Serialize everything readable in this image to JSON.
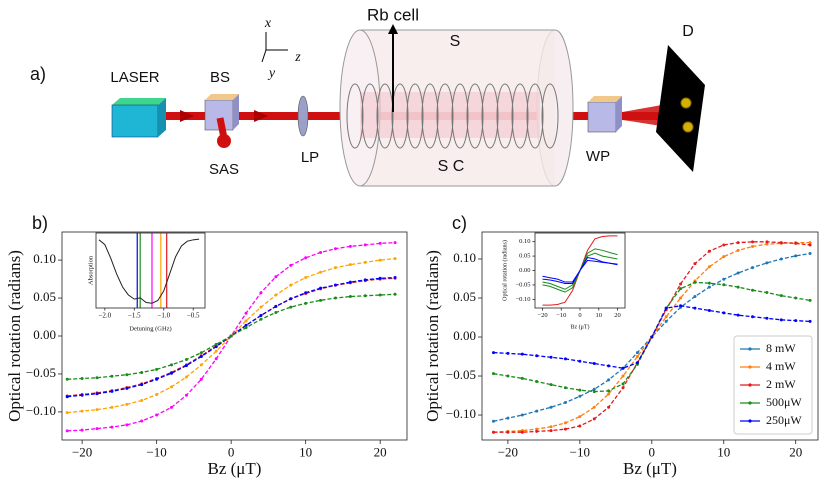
{
  "diagram": {
    "panel_label": "a)",
    "laser": "LASER",
    "bs": "BS",
    "sas": "SAS",
    "lp": "LP",
    "rb_cell": "Rb cell",
    "s": "S",
    "sc": "S C",
    "wp": "WP",
    "d": "D",
    "axis_x": "x",
    "axis_y": "y",
    "axis_z": "z"
  },
  "chart_data": [
    {
      "type": "line",
      "title": "b)",
      "xlabel": "Bz (μT)",
      "ylabel": "Optical rotation (radians)",
      "x": [
        -22,
        -20,
        -18,
        -16,
        -14,
        -12,
        -10,
        -8,
        -6,
        -4,
        -2,
        0,
        2,
        4,
        6,
        8,
        10,
        12,
        14,
        16,
        18,
        20,
        22
      ],
      "xlim": [
        -22.7,
        23.6
      ],
      "ylim": [
        -0.137,
        0.137
      ],
      "xticks": [
        {
          "value": -20,
          "label": "−20"
        },
        {
          "value": -10,
          "label": "−10"
        },
        0,
        10,
        20
      ],
      "yticks": [
        {
          "value": -0.1,
          "label": "−0.10"
        },
        {
          "value": -0.05,
          "label": "−0.05"
        },
        {
          "value": 0,
          "label": "0.00"
        },
        {
          "value": 0.05,
          "label": "0.05"
        },
        {
          "value": 0.1,
          "label": "0.10"
        }
      ],
      "markers": true,
      "dashed": true,
      "series": [
        {
          "color": "#ff00ff",
          "values": [
            -0.125,
            -0.124,
            -0.122,
            -0.12,
            -0.117,
            -0.112,
            -0.104,
            -0.094,
            -0.078,
            -0.057,
            -0.03,
            0,
            0.03,
            0.057,
            0.078,
            0.093,
            0.103,
            0.11,
            0.115,
            0.118,
            0.12,
            0.122,
            0.123
          ]
        },
        {
          "color": "#ffa500",
          "values": [
            -0.101,
            -0.099,
            -0.097,
            -0.094,
            -0.09,
            -0.085,
            -0.077,
            -0.067,
            -0.054,
            -0.038,
            -0.02,
            0,
            0.02,
            0.038,
            0.054,
            0.067,
            0.077,
            0.084,
            0.09,
            0.094,
            0.097,
            0.1,
            0.102
          ]
        },
        {
          "color": "#e41a1c",
          "values": [
            -0.079,
            -0.077,
            -0.075,
            -0.072,
            -0.068,
            -0.063,
            -0.056,
            -0.048,
            -0.038,
            -0.026,
            -0.013,
            0,
            0.014,
            0.027,
            0.039,
            0.049,
            0.056,
            0.062,
            0.067,
            0.07,
            0.073,
            0.075,
            0.076
          ]
        },
        {
          "color": "#0000ff",
          "values": [
            -0.08,
            -0.078,
            -0.076,
            -0.073,
            -0.069,
            -0.064,
            -0.057,
            -0.049,
            -0.039,
            -0.027,
            -0.014,
            0,
            0.014,
            0.027,
            0.039,
            0.049,
            0.057,
            0.063,
            0.067,
            0.071,
            0.074,
            0.076,
            0.077
          ]
        },
        {
          "color": "#1a8c1a",
          "values": [
            -0.057,
            -0.056,
            -0.055,
            -0.053,
            -0.051,
            -0.048,
            -0.044,
            -0.038,
            -0.031,
            -0.022,
            -0.011,
            0,
            0.011,
            0.022,
            0.031,
            0.038,
            0.043,
            0.047,
            0.05,
            0.052,
            0.053,
            0.054,
            0.055
          ]
        }
      ],
      "inset": {
        "type": "line",
        "xlabel": "Detuning (GHz)",
        "ylabel": "Absorption",
        "x": [
          -2.1,
          -2.0,
          -1.9,
          -1.8,
          -1.7,
          -1.6,
          -1.5,
          -1.4,
          -1.3,
          -1.2,
          -1.1,
          -1.0,
          -0.9,
          -0.8,
          -0.7,
          -0.6,
          -0.5,
          -0.4
        ],
        "xlim": [
          -2.15,
          -0.3
        ],
        "ylim": [
          -0.05,
          1.05
        ],
        "xticks": [
          {
            "value": -2.0,
            "label": "−2.0"
          },
          {
            "value": -1.5,
            "label": "−1.5"
          },
          {
            "value": -1.0,
            "label": "−1.0"
          },
          {
            "value": -0.5,
            "label": "−0.5"
          }
        ],
        "markers": false,
        "series": [
          {
            "color": "#222222",
            "values": [
              0.95,
              0.88,
              0.68,
              0.45,
              0.26,
              0.14,
              0.08,
              0.1,
              0.03,
              0.02,
              0.06,
              0.2,
              0.45,
              0.7,
              0.86,
              0.93,
              0.95,
              0.96
            ]
          }
        ],
        "vlines": [
          -1.45,
          -1.4,
          -1.2,
          -1.05,
          -0.95
        ],
        "vline_colors": [
          "#0000ff",
          "#1a8c1a",
          "#ff00ff",
          "#ffa500",
          "#e41a1c"
        ]
      }
    },
    {
      "type": "line",
      "title": "c)",
      "xlabel": "Bz (μT)",
      "ylabel": "Optical rotation (radians)",
      "x": [
        -22,
        -20,
        -18,
        -16,
        -14,
        -12,
        -10,
        -8,
        -6,
        -4,
        -2,
        0,
        2,
        4,
        6,
        8,
        10,
        12,
        14,
        16,
        18,
        20,
        22
      ],
      "xlim": [
        -23.6,
        23.1
      ],
      "ylim": [
        -0.132,
        0.1346
      ],
      "xticks": [
        {
          "value": -20,
          "label": "−20"
        },
        {
          "value": -10,
          "label": "−10"
        },
        0,
        10,
        20
      ],
      "yticks": [
        {
          "value": -0.1,
          "label": "−0.10"
        },
        {
          "value": -0.05,
          "label": "−0.05"
        },
        {
          "value": 0,
          "label": "0.00"
        },
        {
          "value": 0.05,
          "label": "0.05"
        },
        {
          "value": 0.1,
          "label": "0.10"
        }
      ],
      "markers": true,
      "dashed": true,
      "legend": "lower right",
      "series": [
        {
          "name": "8 mW",
          "color": "#1f77b4",
          "values": [
            -0.108,
            -0.104,
            -0.1,
            -0.095,
            -0.09,
            -0.084,
            -0.076,
            -0.067,
            -0.055,
            -0.04,
            -0.02,
            0,
            0.02,
            0.038,
            0.052,
            0.064,
            0.074,
            0.082,
            0.089,
            0.095,
            0.1,
            0.104,
            0.107
          ]
        },
        {
          "name": "4 mW",
          "color": "#ff7f0e",
          "values": [
            -0.122,
            -0.121,
            -0.12,
            -0.118,
            -0.115,
            -0.11,
            -0.102,
            -0.09,
            -0.073,
            -0.05,
            -0.025,
            0,
            0.026,
            0.05,
            0.072,
            0.09,
            0.103,
            0.111,
            0.116,
            0.119,
            0.12,
            0.121,
            0.121
          ]
        },
        {
          "name": "2 mW",
          "color": "#e41a1c",
          "values": [
            -0.122,
            -0.122,
            -0.122,
            -0.121,
            -0.12,
            -0.118,
            -0.114,
            -0.105,
            -0.09,
            -0.065,
            -0.033,
            0,
            0.035,
            0.068,
            0.094,
            0.11,
            0.118,
            0.121,
            0.122,
            0.122,
            0.121,
            0.12,
            0.118
          ]
        },
        {
          "name": "500μW",
          "color": "#1a8c1a",
          "values": [
            -0.047,
            -0.05,
            -0.053,
            -0.057,
            -0.061,
            -0.065,
            -0.068,
            -0.07,
            -0.069,
            -0.06,
            -0.035,
            0,
            0.037,
            0.062,
            0.07,
            0.069,
            0.067,
            0.064,
            0.06,
            0.057,
            0.053,
            0.05,
            0.047
          ]
        },
        {
          "name": "250μW",
          "color": "#0000ff",
          "values": [
            -0.02,
            -0.021,
            -0.022,
            -0.024,
            -0.026,
            -0.028,
            -0.031,
            -0.034,
            -0.037,
            -0.04,
            -0.033,
            0,
            0.037,
            0.04,
            0.037,
            0.034,
            0.031,
            0.028,
            0.026,
            0.024,
            0.022,
            0.021,
            0.02
          ]
        }
      ],
      "inset": {
        "type": "line",
        "xlabel": "Bz (μT)",
        "ylabel": "Optical rotation (radians)",
        "x": [
          -20,
          -16,
          -12,
          -8,
          -4,
          0,
          4,
          8,
          12,
          16,
          20
        ],
        "xlim": [
          -24,
          24
        ],
        "ylim": [
          -0.13,
          0.13
        ],
        "xticks": [
          {
            "value": -20,
            "label": "−20"
          },
          {
            "value": -10,
            "label": "−10"
          },
          0,
          10,
          20
        ],
        "yticks": [
          {
            "value": -0.1,
            "label": "−0.10"
          },
          {
            "value": -0.05,
            "label": "−0.05"
          },
          {
            "value": 0,
            "label": "0.00"
          },
          {
            "value": 0.05,
            "label": "0.05"
          },
          {
            "value": 0.1,
            "label": "0.10"
          }
        ],
        "markers": false,
        "series": [
          {
            "color": "#e41a1c",
            "values": [
              -0.12,
              -0.12,
              -0.118,
              -0.11,
              -0.07,
              0,
              0.07,
              0.11,
              0.118,
              0.12,
              0.12
            ]
          },
          {
            "color": "#1a8c1a",
            "values": [
              -0.04,
              -0.045,
              -0.055,
              -0.065,
              -0.05,
              0,
              0.06,
              0.075,
              0.07,
              0.062,
              0.055
            ]
          },
          {
            "color": "#1a8c1a",
            "values": [
              -0.05,
              -0.055,
              -0.065,
              -0.075,
              -0.06,
              0,
              0.05,
              0.06,
              0.05,
              0.045,
              0.04
            ]
          },
          {
            "color": "#0000ff",
            "values": [
              -0.02,
              -0.025,
              -0.03,
              -0.04,
              -0.04,
              0,
              0.045,
              0.04,
              0.03,
              0.025,
              0.02
            ]
          },
          {
            "color": "#0000ff",
            "values": [
              -0.03,
              -0.033,
              -0.038,
              -0.045,
              -0.045,
              0,
              0.035,
              0.032,
              0.028,
              0.025,
              0.022
            ]
          }
        ]
      }
    }
  ]
}
